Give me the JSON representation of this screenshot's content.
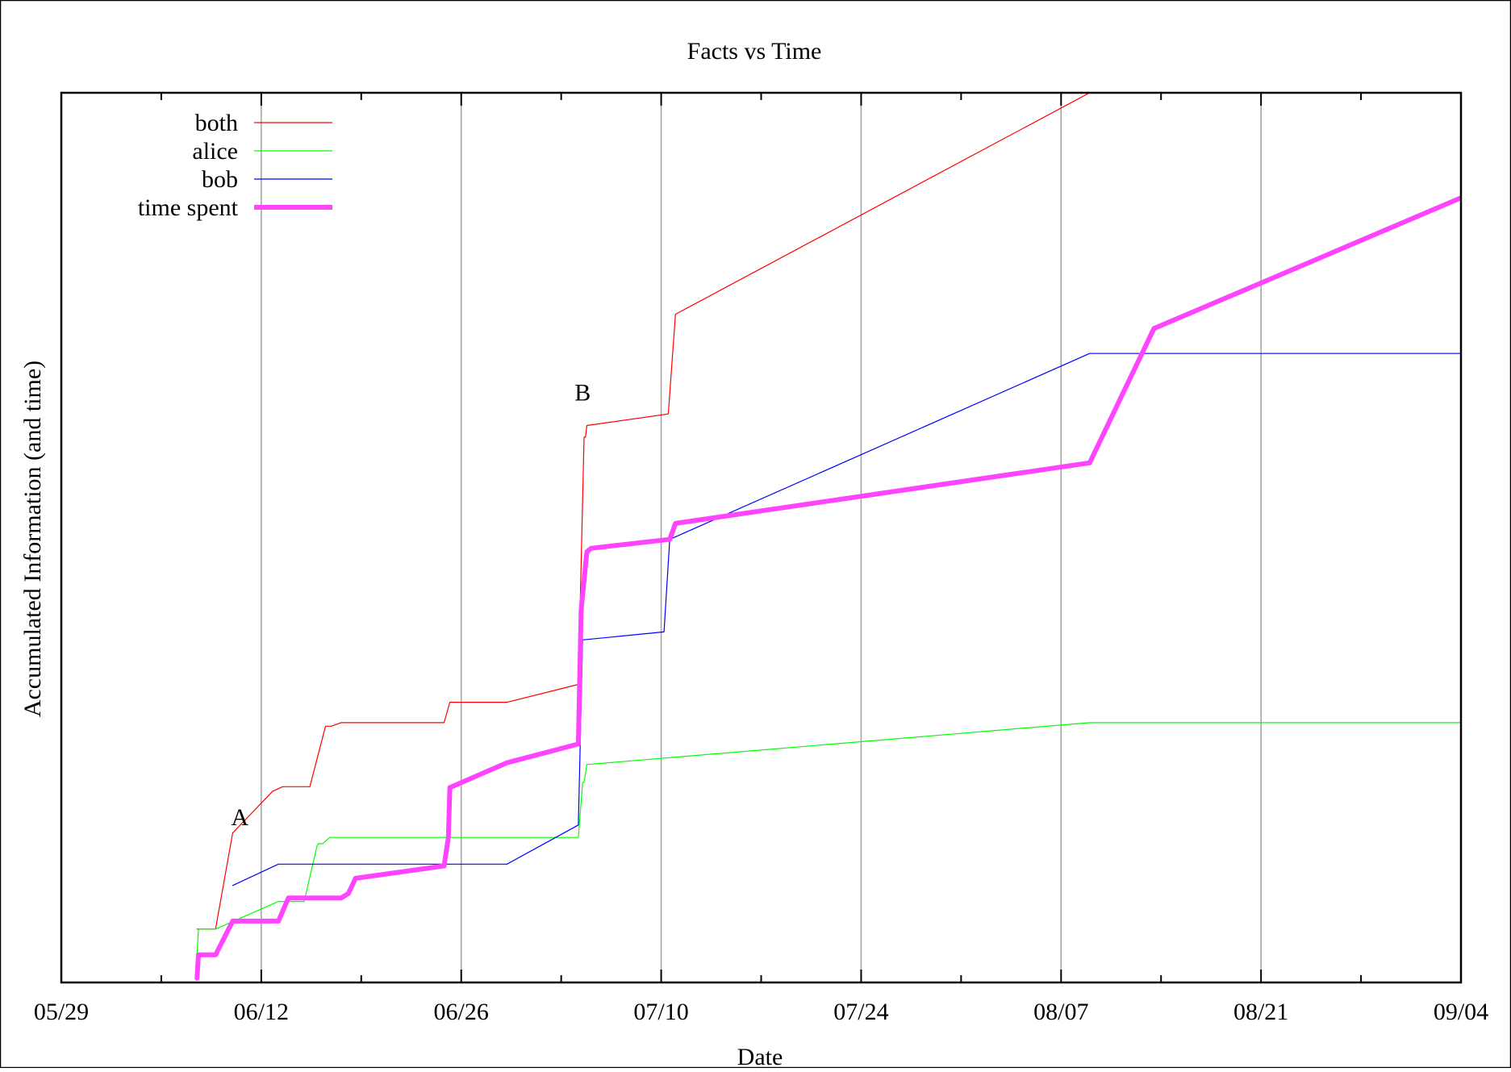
{
  "chart_data": {
    "type": "line",
    "title": "Facts vs Time",
    "xlabel": "Date",
    "ylabel": "Accumulated Information (and time)",
    "x_tick_labels": [
      "05/29",
      "06/12",
      "06/26",
      "07/10",
      "07/24",
      "08/07",
      "08/21",
      "09/04"
    ],
    "x_ticks": [
      "05-29",
      "06-12",
      "06-26",
      "07-10",
      "07-24",
      "08-07",
      "08-21",
      "09-04"
    ],
    "xlim": [
      "05-29",
      "09-04"
    ],
    "ylim": [
      0,
      100
    ],
    "grid": "vertical",
    "legend_position": "top-left",
    "annotations": [
      {
        "text": "A",
        "x": "06-10.5",
        "y": 18.6
      },
      {
        "text": "B",
        "x": "07-04.5",
        "y": 66.3
      }
    ],
    "series": [
      {
        "name": "both",
        "color": "#ff0000",
        "width": 1.2,
        "points": [
          [
            "06-07.5",
            6.0
          ],
          [
            "06-07.7",
            6.0
          ],
          [
            "06-08.8",
            6.0
          ],
          [
            "06-10.0",
            16.8
          ],
          [
            "06-12.8",
            21.5
          ],
          [
            "06-13.5",
            22.0
          ],
          [
            "06-15.4",
            22.0
          ],
          [
            "06-16.5",
            28.8
          ],
          [
            "06-16.9",
            28.8
          ],
          [
            "06-17.6",
            29.2
          ],
          [
            "06-24.8",
            29.2
          ],
          [
            "06-25.2",
            31.5
          ],
          [
            "06-29.2",
            31.5
          ],
          [
            "07-04.2",
            33.5
          ],
          [
            "07-04.6",
            61.3
          ],
          [
            "07-04.7",
            61.3
          ],
          [
            "07-04.8",
            62.6
          ],
          [
            "07-10.5",
            63.9
          ],
          [
            "07-11.0",
            75.1
          ],
          [
            "08-09.0",
            100.0
          ]
        ]
      },
      {
        "name": "alice",
        "color": "#00ff00",
        "width": 1.2,
        "points": [
          [
            "06-07.5",
            3.0
          ],
          [
            "06-07.6",
            6.0
          ],
          [
            "06-08.8",
            6.0
          ],
          [
            "06-13.2",
            9.1
          ],
          [
            "06-15.0",
            9.1
          ],
          [
            "06-15.9",
            15.3
          ],
          [
            "06-16.0",
            15.6
          ],
          [
            "06-16.3",
            15.6
          ],
          [
            "06-16.8",
            16.3
          ],
          [
            "07-04.2",
            16.3
          ],
          [
            "07-04.5",
            22.5
          ],
          [
            "07-04.6",
            22.5
          ],
          [
            "07-04.8",
            24.5
          ],
          [
            "08-09.0",
            29.2
          ],
          [
            "09-06.5",
            29.2
          ]
        ]
      },
      {
        "name": "bob",
        "color": "#0000ff",
        "width": 1.2,
        "points": [
          [
            "06-10.0",
            10.9
          ],
          [
            "06-13.2",
            13.3
          ],
          [
            "06-24.7",
            13.3
          ],
          [
            "06-29.2",
            13.3
          ],
          [
            "07-04.2",
            17.7
          ],
          [
            "07-04.5",
            38.5
          ],
          [
            "07-10.2",
            39.4
          ],
          [
            "07-10.6",
            49.8
          ],
          [
            "08-09.0",
            70.7
          ],
          [
            "09-06.5",
            70.7
          ]
        ]
      },
      {
        "name": "time spent",
        "color": "#ff44ff",
        "width": 6,
        "points": [
          [
            "06-07.5",
            0.5
          ],
          [
            "06-07.6",
            3.1
          ],
          [
            "06-08.8",
            3.1
          ],
          [
            "06-10.0",
            6.9
          ],
          [
            "06-13.2",
            6.9
          ],
          [
            "06-13.9",
            9.5
          ],
          [
            "06-17.6",
            9.5
          ],
          [
            "06-18.1",
            10.0
          ],
          [
            "06-18.6",
            11.7
          ],
          [
            "06-24.8",
            13.1
          ],
          [
            "06-25.1",
            16.3
          ],
          [
            "06-25.2",
            21.9
          ],
          [
            "06-29.2",
            24.7
          ],
          [
            "07-04.2",
            26.8
          ],
          [
            "07-04.4",
            41.9
          ],
          [
            "07-04.8",
            48.4
          ],
          [
            "07-05.1",
            48.8
          ],
          [
            "07-10.6",
            49.8
          ],
          [
            "07-11.0",
            51.6
          ],
          [
            "08-09.0",
            58.4
          ],
          [
            "08-13.5",
            73.5
          ],
          [
            "09-06.5",
            89.9
          ]
        ]
      }
    ]
  }
}
